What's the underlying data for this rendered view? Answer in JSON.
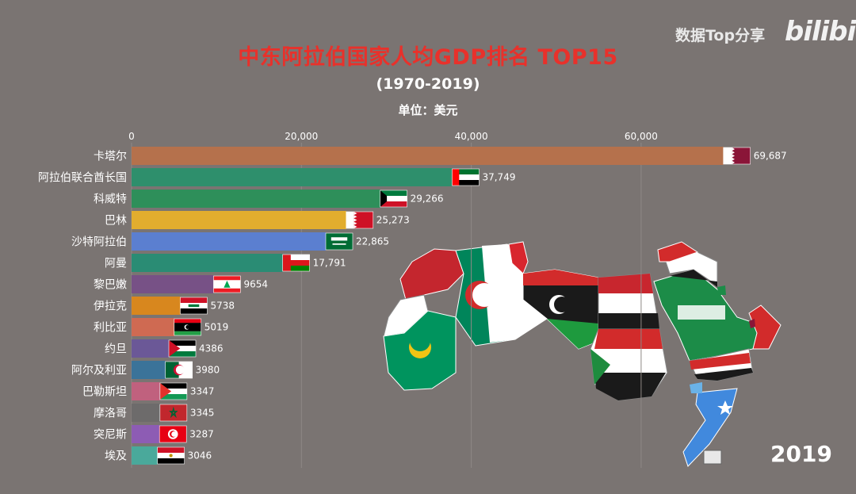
{
  "header": {
    "title": "中东阿拉伯国家人均GDP排名 TOP15",
    "subtitle": "(1970-2019)",
    "unit": "单位：美元",
    "watermark_text": "数据Top分享",
    "watermark_logo": "bilibili",
    "year": "2019"
  },
  "chart_data": {
    "type": "bar",
    "orientation": "horizontal",
    "title": "中东阿拉伯国家人均GDP排名 TOP15",
    "subtitle": "(1970-2019)",
    "unit": "单位：美元",
    "xlim": [
      0,
      70000
    ],
    "x_ticks": [
      {
        "value": 0,
        "label": "0"
      },
      {
        "value": 20000,
        "label": "20,000"
      },
      {
        "value": 40000,
        "label": "40,000"
      },
      {
        "value": 60000,
        "label": "60,000"
      }
    ],
    "grid": true,
    "legend": "none",
    "categories": [
      "卡塔尔",
      "阿拉伯联合酋长国",
      "科威特",
      "巴林",
      "沙特阿拉伯",
      "阿曼",
      "黎巴嫩",
      "伊拉克",
      "利比亚",
      "约旦",
      "阿尔及利亚",
      "巴勒斯坦",
      "摩洛哥",
      "突尼斯",
      "埃及"
    ],
    "values": [
      69687,
      37749,
      29266,
      25273,
      22865,
      17791,
      9654,
      5738,
      5019,
      4386,
      3980,
      3347,
      3345,
      3287,
      3046
    ],
    "value_labels": [
      "69,687",
      "37,749",
      "29,266",
      "25,273",
      "22,865",
      "17,791",
      "9654",
      "5738",
      "5019",
      "4386",
      "3980",
      "3347",
      "3345",
      "3287",
      "3046"
    ],
    "bar_colors": [
      "#b5714c",
      "#2e8f6c",
      "#2e8f5a",
      "#e2ad2e",
      "#5b7fd0",
      "#2a8c74",
      "#775186",
      "#d8871e",
      "#cf6a52",
      "#6b5897",
      "#3b7399",
      "#c0617e",
      "#6d6b6b",
      "#8d5cb4",
      "#4aa99b"
    ],
    "flags": [
      "qatar",
      "uae",
      "kuwait",
      "bahrain",
      "saudi",
      "oman",
      "lebanon",
      "iraq",
      "libya",
      "jordan",
      "algeria",
      "palestine",
      "morocco",
      "tunisia",
      "egypt"
    ]
  }
}
